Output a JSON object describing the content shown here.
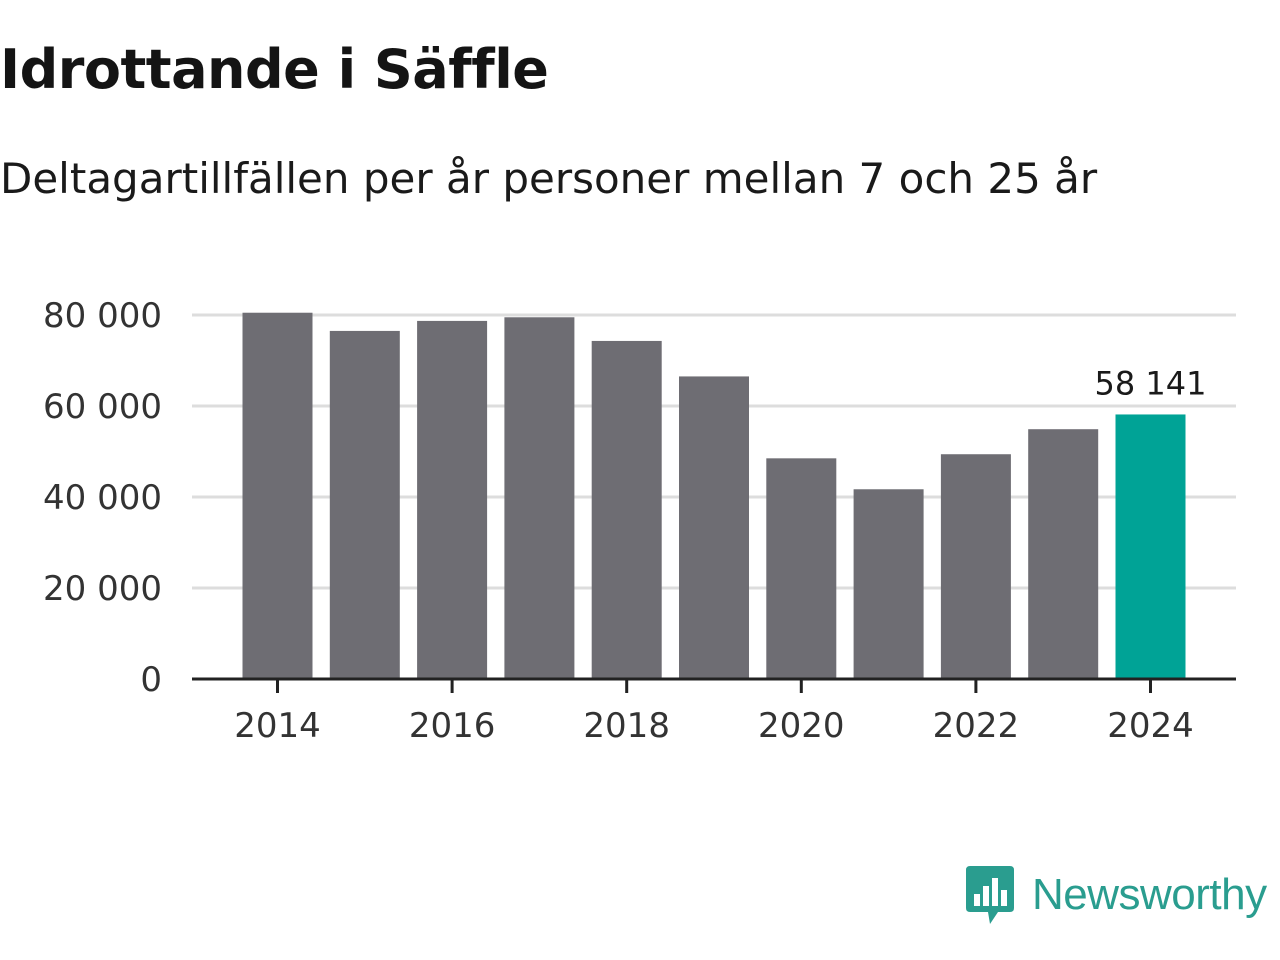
{
  "header": {
    "title": "Idrottande i Säffle",
    "subtitle": "Deltagartillfällen per år personer mellan 7 och 25 år"
  },
  "chart_data": {
    "type": "bar",
    "title": "Idrottande i Säffle",
    "subtitle": "Deltagartillfällen per år personer mellan 7 och 25 år",
    "xlabel": "",
    "ylabel": "",
    "categories": [
      "2014",
      "2015",
      "2016",
      "2017",
      "2018",
      "2019",
      "2020",
      "2021",
      "2022",
      "2023",
      "2024"
    ],
    "values": [
      80500,
      76500,
      78700,
      79500,
      74300,
      66500,
      48500,
      41700,
      49400,
      54900,
      58141
    ],
    "x_tick_labels": [
      "2014",
      "2016",
      "2018",
      "2020",
      "2022",
      "2024"
    ],
    "y_ticks": [
      0,
      20000,
      40000,
      60000,
      80000
    ],
    "y_tick_labels": [
      "0",
      "20 000",
      "40 000",
      "60 000",
      "80 000"
    ],
    "ylim": [
      0,
      80000
    ],
    "grid": true,
    "highlight_index": 10,
    "annotations": [
      {
        "category": "2024",
        "text": "58 141"
      }
    ],
    "colors": {
      "bar": "#6e6d73",
      "highlight": "#00a396",
      "grid": "#dddddd",
      "axis": "#222222"
    }
  },
  "branding": {
    "logo_text": "Newsworthy",
    "logo_icon": "bar-chart-speech-icon",
    "color": "#2a9d8f"
  }
}
